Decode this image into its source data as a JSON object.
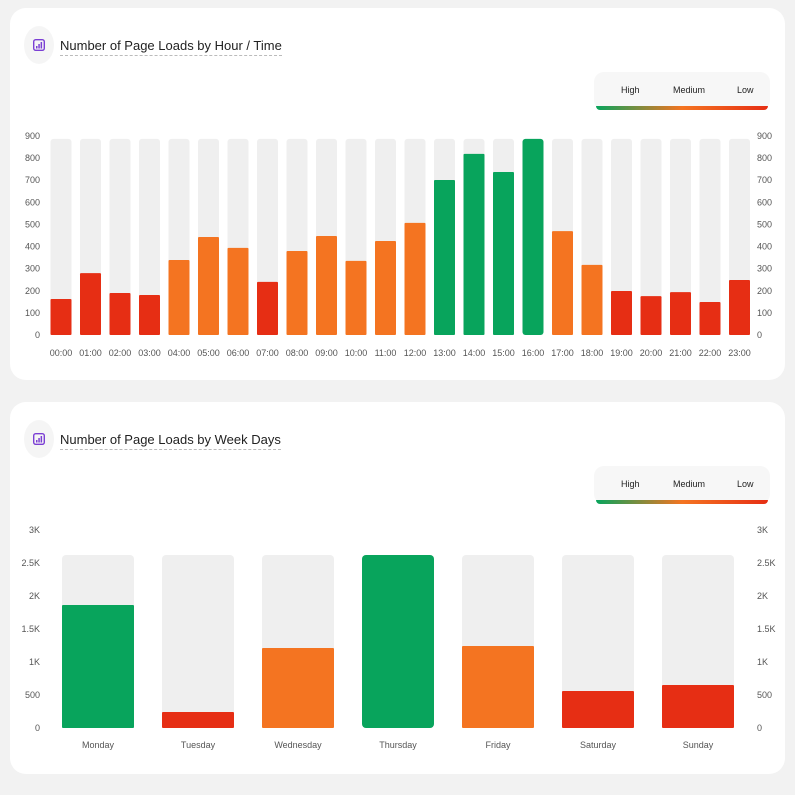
{
  "colors": {
    "high": "#08a45c",
    "medium": "#f47421",
    "low": "#e62e14",
    "track": "#efefef"
  },
  "legend": {
    "high": "High",
    "medium": "Medium",
    "low": "Low"
  },
  "chart_data": [
    {
      "type": "bar",
      "title": "Number of Page Loads by Hour / Time",
      "icon": "bar-chart-icon",
      "ylim": [
        0,
        900
      ],
      "yticks": [
        "0",
        "100",
        "200",
        "300",
        "400",
        "500",
        "600",
        "700",
        "800",
        "900"
      ],
      "categories": [
        "00:00",
        "01:00",
        "02:00",
        "03:00",
        "04:00",
        "05:00",
        "06:00",
        "07:00",
        "08:00",
        "09:00",
        "10:00",
        "11:00",
        "12:00",
        "13:00",
        "14:00",
        "15:00",
        "16:00",
        "17:00",
        "18:00",
        "19:00",
        "20:00",
        "21:00",
        "22:00",
        "23:00"
      ],
      "values": [
        163,
        280,
        190,
        181,
        339,
        443,
        394,
        240,
        380,
        448,
        335,
        425,
        507,
        701,
        819,
        737,
        887,
        470,
        317,
        199,
        176,
        194,
        149,
        249
      ],
      "levels": [
        "low",
        "low",
        "low",
        "low",
        "medium",
        "medium",
        "medium",
        "low",
        "medium",
        "medium",
        "medium",
        "medium",
        "medium",
        "high",
        "high",
        "high",
        "high",
        "medium",
        "medium",
        "low",
        "low",
        "low",
        "low",
        "low"
      ],
      "track_max": 887
    },
    {
      "type": "bar",
      "title": "Number of Page Loads by Week Days",
      "icon": "bar-chart-icon",
      "ylim": [
        0,
        3000
      ],
      "yticks": [
        "0",
        "500",
        "1K",
        "1.5K",
        "2K",
        "2.5K",
        "3K"
      ],
      "categories": [
        "Monday",
        "Tuesday",
        "Wednesday",
        "Thursday",
        "Friday",
        "Saturday",
        "Sunday"
      ],
      "values": [
        1864,
        242,
        1212,
        2621,
        1242,
        560,
        652
      ],
      "levels": [
        "high",
        "low",
        "medium",
        "high",
        "medium",
        "low",
        "low"
      ],
      "track_max": 2621
    }
  ]
}
